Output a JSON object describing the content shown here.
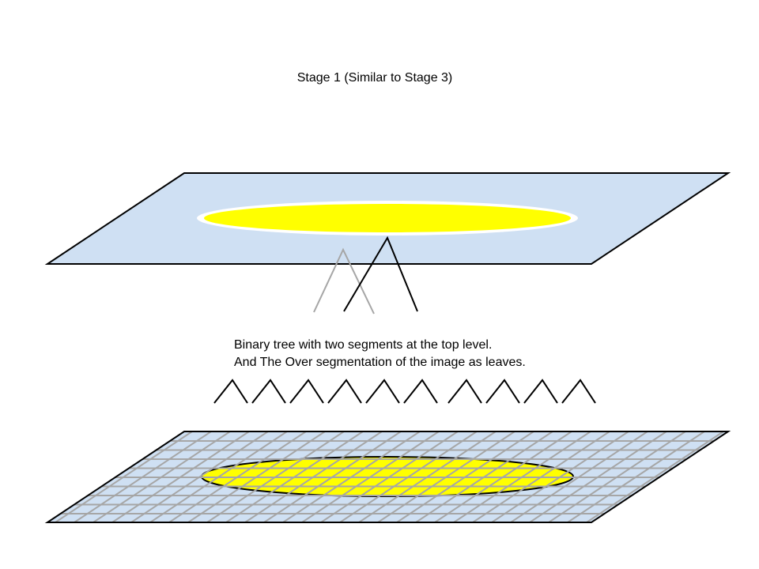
{
  "title": "Stage 1 (Similar to Stage 3)",
  "caption": {
    "line1": "Binary tree with two segments at the top level.",
    "line2": "And The Over segmentation of the image as leaves."
  },
  "colors": {
    "plane_fill": "#cfe0f3",
    "ellipse_fill": "#ffff00",
    "grid_line": "#a6a6a6",
    "tree_dark": "#000000",
    "tree_light": "#a6a6a6"
  }
}
